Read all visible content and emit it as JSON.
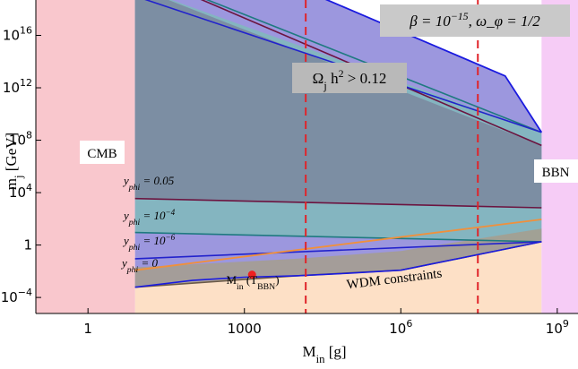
{
  "chart_data": {
    "type": "area",
    "title": "",
    "xlabel": "M_in [g]",
    "ylabel": "m_j [GeV]",
    "xscale": "log",
    "yscale": "log",
    "xlim": [
      0.1,
      2500000000.0
    ],
    "ylim": [
      6e-06,
      5e+18
    ],
    "x_ticks": [
      {
        "value": 1,
        "label": "1"
      },
      {
        "value": 1000,
        "label": "1000"
      },
      {
        "value": 1000000.0,
        "label": "10^6"
      },
      {
        "value": 1000000000.0,
        "label": "10^9"
      }
    ],
    "y_ticks": [
      {
        "value": 0.0001,
        "label": "10^-4"
      },
      {
        "value": 1,
        "label": "1"
      },
      {
        "value": 10000.0,
        "label": "10^4"
      },
      {
        "value": 100000000.0,
        "label": "10^8"
      },
      {
        "value": 1000000000000.0,
        "label": "10^12"
      },
      {
        "value": 1e+16,
        "label": "10^16"
      }
    ],
    "grid": false,
    "regions": [
      {
        "label": "CMB",
        "x_range": [
          0.1,
          8
        ],
        "color": "#f9c7cd"
      },
      {
        "label": "BBN",
        "x_range": [
          500000000.0,
          2500000000.0
        ],
        "color": "#f6ccf6"
      },
      {
        "label": "WDM constraints",
        "color": "#fde0c6"
      }
    ],
    "boundaries": {
      "wdm_x": [
        8,
        100,
        1000,
        10000.0,
        100000.0,
        1000000.0,
        500000000.0
      ],
      "wdm_y": [
        0.0006,
        0.002,
        0.0035,
        0.0045,
        0.007,
        0.012,
        1.8
      ],
      "upper_x": [
        8,
        10000.0,
        100000.0,
        1000000.0,
        10000000.0,
        100000000.0,
        500000000.0
      ],
      "upper_y": [
        5e+19,
        5e+19,
        1e+18,
        2e+16,
        400000000000000.0,
        8000000000000.0,
        400000000.0
      ]
    },
    "series": [
      {
        "name": "y_phi = 0.05",
        "color": "#6c1440",
        "x": [
          8,
          500000000.0
        ],
        "y_lower": [
          3500,
          700
        ],
        "y_upper": [
          8e+20,
          40000000.0
        ]
      },
      {
        "name": "y_phi = 10^-4",
        "color": "#1f7a80",
        "x": [
          8,
          500000000.0
        ],
        "y_lower": [
          9,
          1.8
        ],
        "y_upper": [
          8e+20,
          400000000.0
        ]
      },
      {
        "name": "y_phi = 10^-6",
        "color": "#2222cc",
        "x": [
          8,
          500000000.0
        ],
        "y_lower": [
          0.09,
          1.8
        ],
        "y_upper": [
          1e+19,
          400000000.0
        ]
      },
      {
        "name": "y_phi = 0",
        "color": "#6b5a4a",
        "x": [
          8,
          10000.0,
          1000000.0,
          500000000.0
        ],
        "y_lower": [
          0.0006,
          0.0045,
          0.012,
          1.8
        ],
        "y_upper": [
          0.02,
          0.09,
          0.35,
          18
        ]
      }
    ],
    "lines": [
      {
        "name": "M_in (T_BBN)",
        "type": "vline",
        "x": 15000.0,
        "color": "#e0242a",
        "style": "dashed"
      },
      {
        "name": "",
        "type": "vline",
        "x": 30000000.0,
        "color": "#e0242a",
        "style": "dashed"
      }
    ],
    "points": [
      {
        "label": "M_in (T_BBN)",
        "x": 1400,
        "y": 0.0055,
        "color": "#ef2020"
      }
    ],
    "annotations": [
      {
        "text": "β = 10^-15,  ω_φ = 1/2"
      },
      {
        "text": "Ω_j h^2 > 0.12"
      }
    ]
  }
}
